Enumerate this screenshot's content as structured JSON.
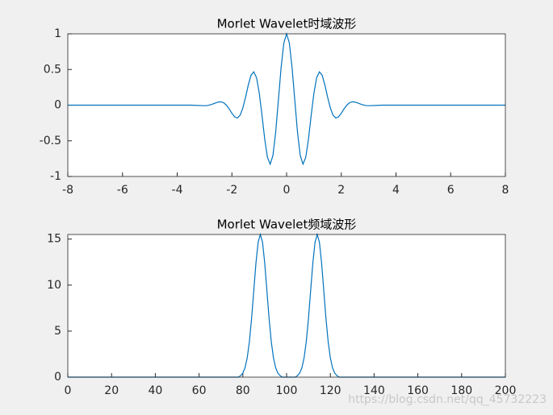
{
  "chart_data": [
    {
      "type": "line",
      "title": "Morlet Wavelet时域波形",
      "x": [
        -8,
        -3.5,
        -3.0,
        -2.9,
        -2.8,
        -2.7,
        -2.6,
        -2.5,
        -2.4,
        -2.3,
        -2.2,
        -2.1,
        -2.0,
        -1.9,
        -1.8,
        -1.7,
        -1.6,
        -1.5,
        -1.4,
        -1.3,
        -1.2,
        -1.1,
        -1.0,
        -0.9,
        -0.8,
        -0.7,
        -0.6,
        -0.5,
        -0.4,
        -0.3,
        -0.2,
        -0.1,
        0,
        0.1,
        0.2,
        0.3,
        0.4,
        0.5,
        0.6,
        0.7,
        0.8,
        0.9,
        1.0,
        1.1,
        1.2,
        1.3,
        1.4,
        1.5,
        1.6,
        1.7,
        1.8,
        1.9,
        2.0,
        2.1,
        2.2,
        2.3,
        2.4,
        2.5,
        2.6,
        2.7,
        2.8,
        2.9,
        3.0,
        3.5,
        8
      ],
      "values": [
        0,
        0,
        -0.008,
        -0.005,
        0.003,
        0.016,
        0.031,
        0.044,
        0.047,
        0.034,
        0.0,
        -0.052,
        -0.114,
        -0.164,
        -0.18,
        -0.142,
        -0.04,
        0.113,
        0.283,
        0.42,
        0.467,
        0.387,
        0.172,
        -0.141,
        -0.475,
        -0.733,
        -0.827,
        -0.707,
        -0.384,
        0.068,
        0.53,
        0.873,
        1,
        0.873,
        0.53,
        0.068,
        -0.384,
        -0.707,
        -0.827,
        -0.733,
        -0.475,
        -0.141,
        0.172,
        0.387,
        0.467,
        0.42,
        0.283,
        0.113,
        -0.04,
        -0.142,
        -0.18,
        -0.164,
        -0.114,
        -0.052,
        0.0,
        0.034,
        0.047,
        0.044,
        0.031,
        0.016,
        0.003,
        -0.005,
        -0.008,
        0,
        0
      ],
      "color": "#0072bd",
      "xlim": [
        -8,
        8
      ],
      "xticks": [
        -8,
        -6,
        -4,
        -2,
        0,
        2,
        4,
        6,
        8
      ],
      "ylim": [
        -1,
        1
      ],
      "yticks": [
        -1,
        -0.5,
        0,
        0.5,
        1
      ]
    },
    {
      "type": "line",
      "title": "Morlet Wavelet频域波形",
      "x": [
        0,
        78,
        79,
        80,
        81,
        82,
        83,
        84,
        85,
        86,
        87,
        88,
        89,
        90,
        91,
        92,
        93,
        94,
        95,
        96,
        97,
        98,
        104,
        105,
        106,
        107,
        108,
        109,
        110,
        111,
        112,
        113,
        114,
        115,
        116,
        117,
        118,
        119,
        120,
        121,
        122,
        123,
        124,
        200
      ],
      "values": [
        0,
        0,
        0.17,
        0.44,
        1.02,
        2.1,
        3.86,
        6.37,
        9.4,
        12.41,
        14.66,
        15.5,
        14.66,
        12.41,
        9.4,
        6.37,
        3.86,
        2.1,
        1.02,
        0.44,
        0.17,
        0,
        0,
        0.17,
        0.44,
        1.02,
        2.1,
        3.86,
        6.37,
        9.4,
        12.41,
        14.66,
        15.5,
        14.66,
        12.41,
        9.4,
        6.37,
        3.86,
        2.1,
        1.02,
        0.44,
        0.17,
        0,
        0
      ],
      "color": "#0072bd",
      "xlim": [
        0,
        200
      ],
      "xticks": [
        0,
        20,
        40,
        60,
        80,
        100,
        120,
        140,
        160,
        180,
        200
      ],
      "ylim": [
        0,
        15.5
      ],
      "yticks": [
        0,
        5,
        10,
        15
      ]
    }
  ],
  "watermark": "https://blog.csdn.net/qq_45732223"
}
